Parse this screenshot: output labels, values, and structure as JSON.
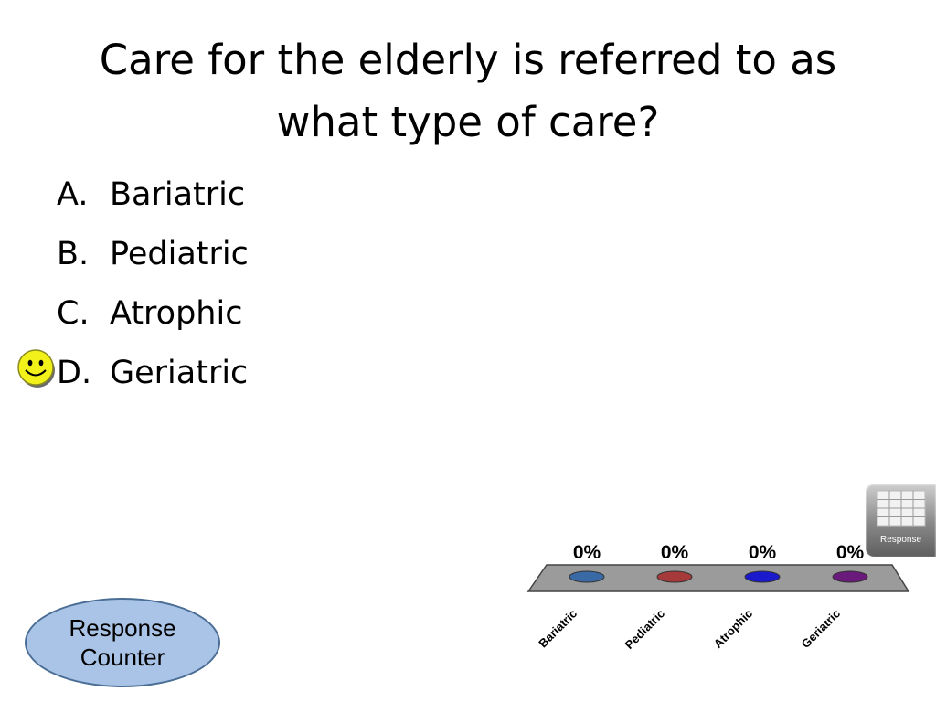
{
  "slide": {
    "title_line1": "Care for the elderly is referred to as",
    "title_line2": "what type of care?"
  },
  "answers": [
    {
      "letter": "A.",
      "text": "Bariatric"
    },
    {
      "letter": "B.",
      "text": "Pediatric"
    },
    {
      "letter": "C.",
      "text": "Atrophic"
    },
    {
      "letter": "D.",
      "text": "Geriatric"
    }
  ],
  "correct_answer_marker": {
    "icon": "smiley-icon",
    "answer": "D."
  },
  "response_counter": {
    "line1": "Response",
    "line2": "Counter"
  },
  "response_grid_button": {
    "label": "Response",
    "icon": "grid-icon"
  },
  "chart_data": {
    "type": "bar",
    "categories": [
      "Bariatric",
      "Pediatric",
      "Atrophic",
      "Geriatric"
    ],
    "values": [
      0,
      0,
      0,
      0
    ],
    "data_labels": [
      "0%",
      "0%",
      "0%",
      "0%"
    ],
    "colors": [
      "#3a6aa6",
      "#a63a3a",
      "#1a1acc",
      "#6a1a7a"
    ],
    "ylim": [
      0,
      100
    ],
    "title": "",
    "xlabel": "",
    "ylabel": ""
  }
}
